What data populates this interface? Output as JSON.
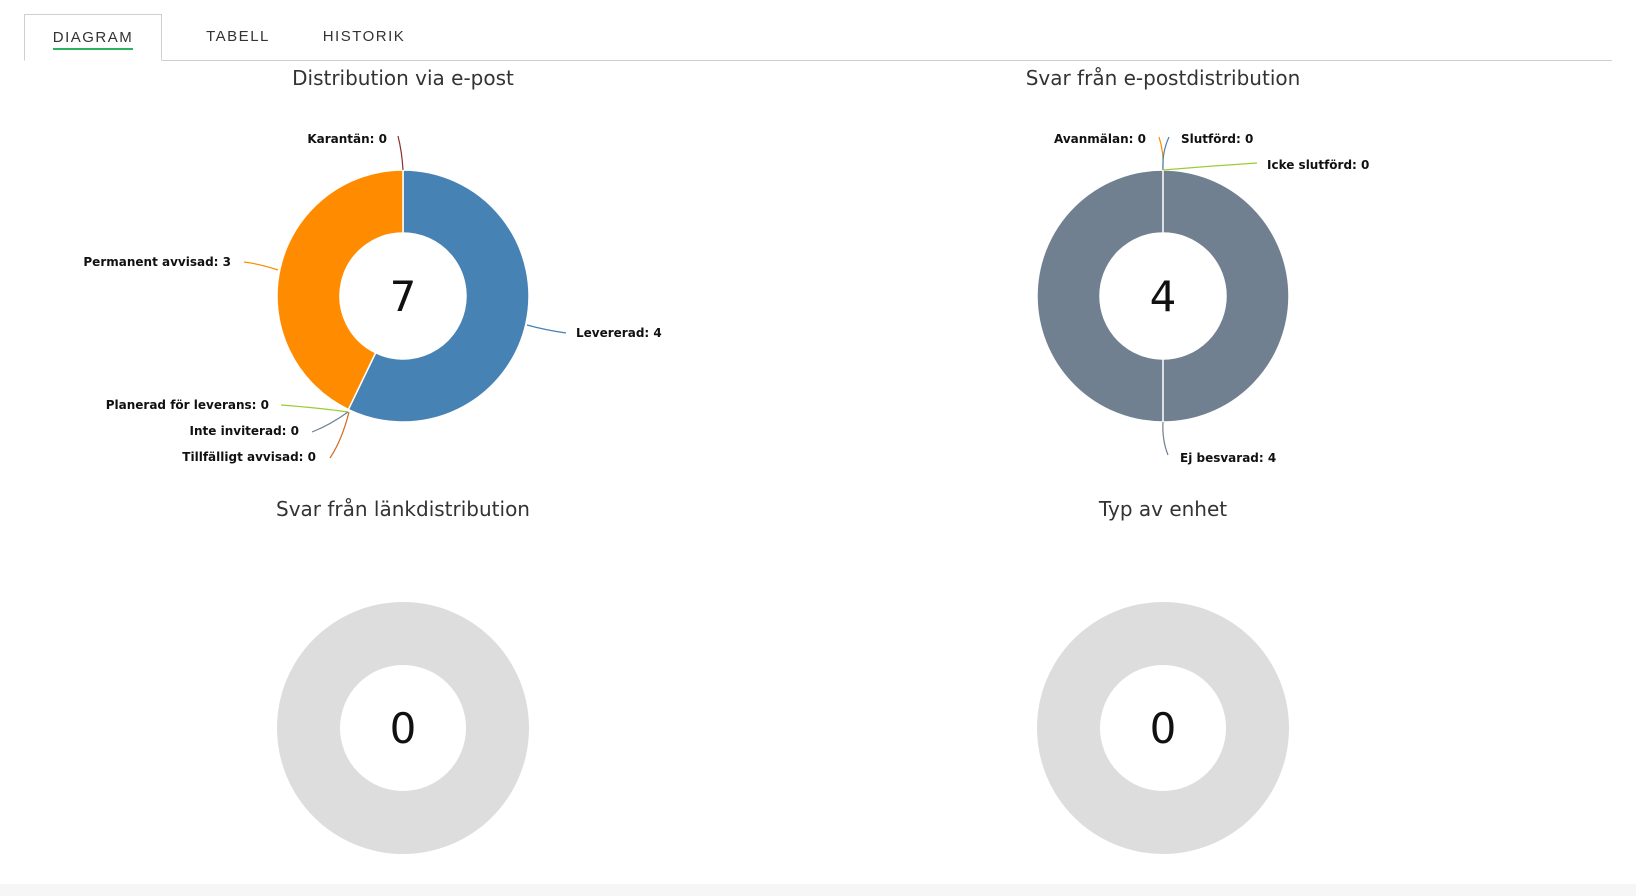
{
  "tabs": [
    {
      "label": "DIAGRAM",
      "active": true
    },
    {
      "label": "TABELL",
      "active": false
    },
    {
      "label": "HISTORIK",
      "active": false
    }
  ],
  "chart_data": [
    {
      "type": "pie",
      "title": "Distribution via e-post",
      "total": "7",
      "categories": [
        "Levererad",
        "Permanent avvisad",
        "Karantän",
        "Planerad för leverans",
        "Inte inviterad",
        "Tillfälligt avvisad"
      ],
      "values": [
        4,
        3,
        0,
        0,
        0,
        0
      ],
      "labels": [
        "Levererad: 4",
        "Permanent avvisad: 3",
        "Karantän: 0",
        "Planerad för leverans: 0",
        "Inte inviterad: 0",
        "Tillfälligt avvisad: 0"
      ],
      "colors": [
        "#4682b4",
        "#ff8c00",
        "#8b2e2e",
        "#9acd32",
        "#708090",
        "#d2691e"
      ]
    },
    {
      "type": "pie",
      "title": "Svar från e-postdistribution",
      "total": "4",
      "categories": [
        "Ej besvarad",
        "Avanmälan",
        "Slutförd",
        "Icke slutförd"
      ],
      "values": [
        4,
        0,
        0,
        0
      ],
      "labels": [
        "Ej besvarad: 4",
        "Avanmälan: 0",
        "Slutförd: 0",
        "Icke slutförd: 0"
      ],
      "colors": [
        "#708090",
        "#ff8c00",
        "#4682b4",
        "#9acd32"
      ]
    },
    {
      "type": "pie",
      "title": "Svar från länkdistribution",
      "total": "0",
      "categories": [],
      "values": [],
      "labels": [],
      "colors": [
        "#dddddd"
      ]
    },
    {
      "type": "pie",
      "title": "Typ av enhet",
      "total": "0",
      "categories": [],
      "values": [],
      "labels": [],
      "colors": [
        "#dddddd"
      ]
    }
  ]
}
